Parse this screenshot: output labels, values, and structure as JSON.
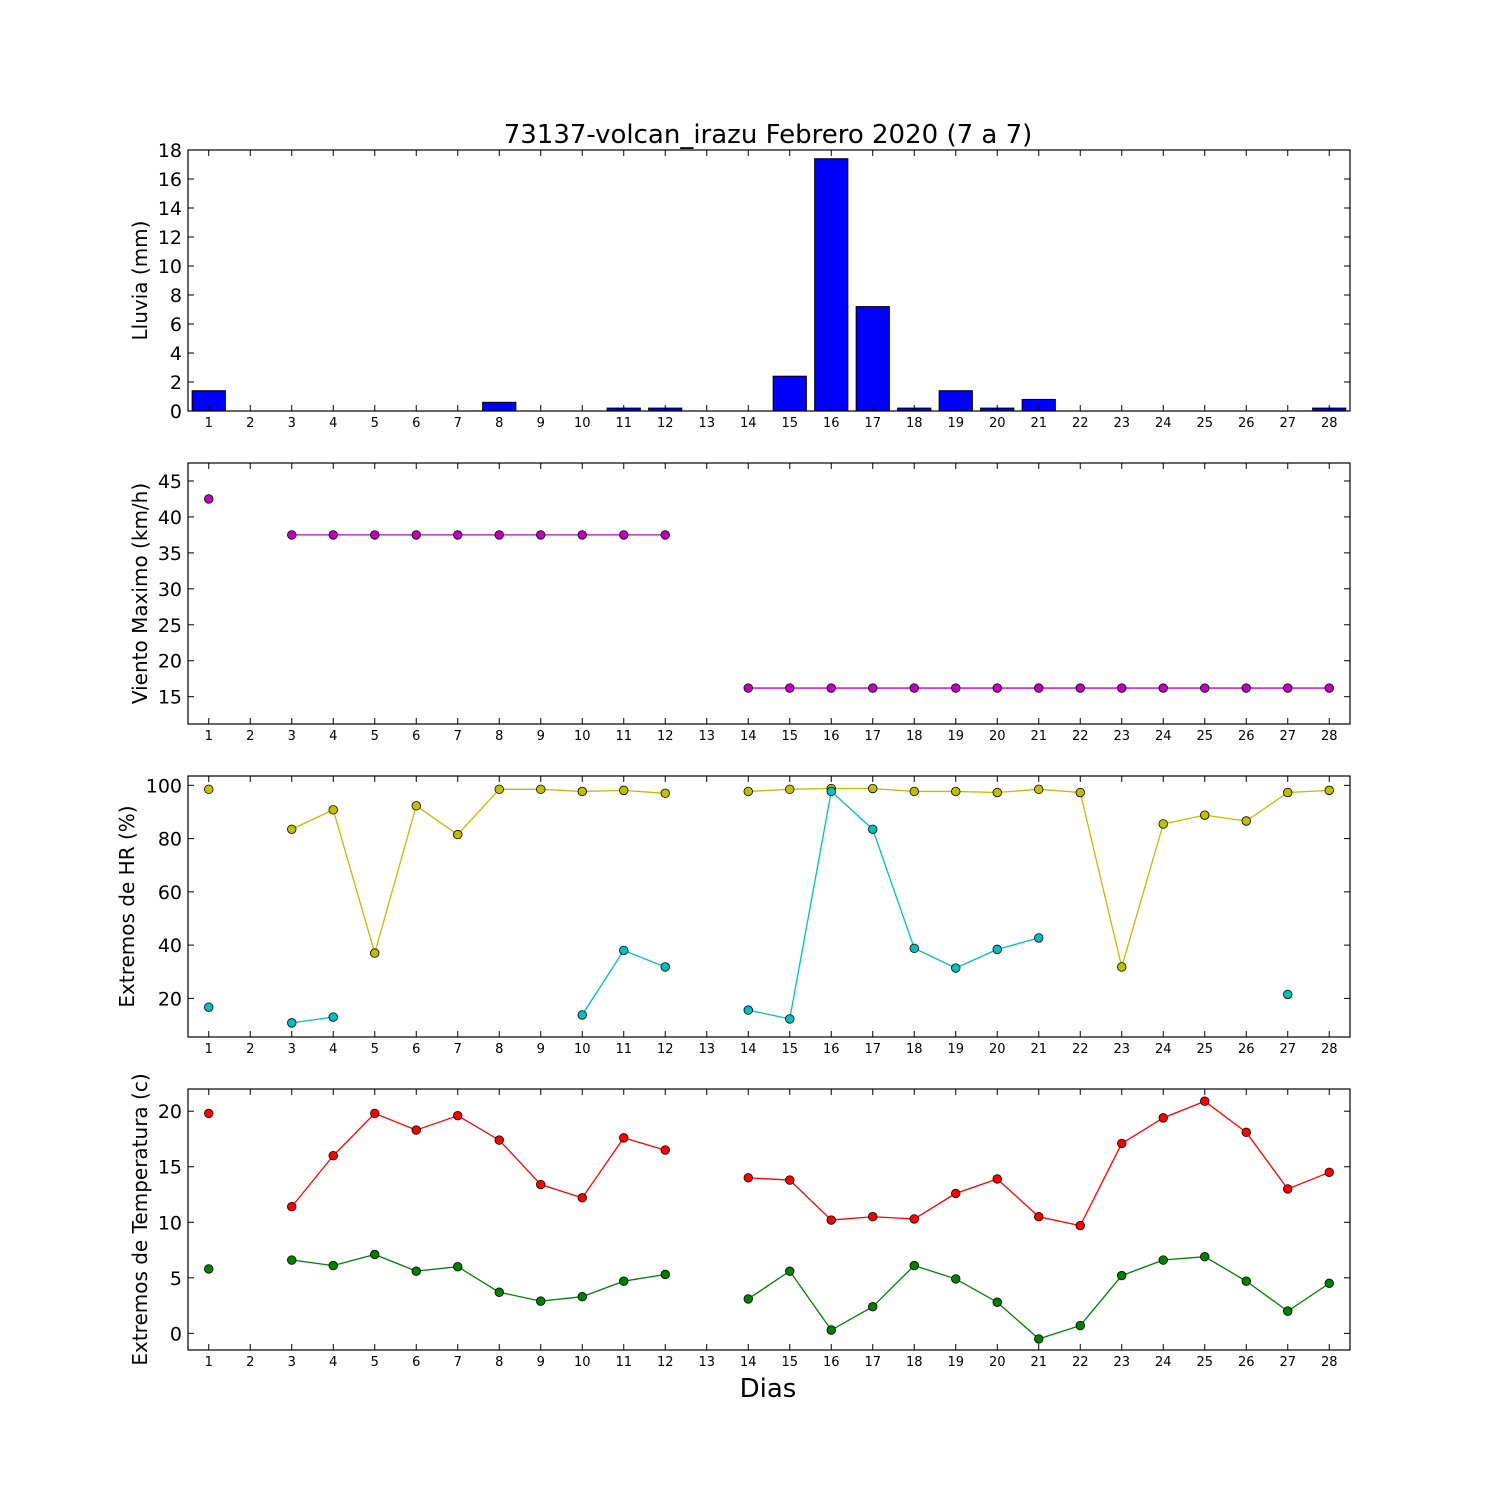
{
  "title": "73137-volcan_irazu Febrero 2020  (7 a 7)",
  "xlabel": "Dias",
  "chart_data": [
    {
      "type": "bar",
      "ylabel": "Lluvia (mm)",
      "ylim": [
        0,
        18
      ],
      "yticks": [
        0,
        2,
        4,
        6,
        8,
        10,
        12,
        14,
        16,
        18
      ],
      "xlim": [
        0.5,
        28.5
      ],
      "x": [
        1,
        2,
        3,
        4,
        5,
        6,
        7,
        8,
        9,
        10,
        11,
        12,
        13,
        14,
        15,
        16,
        17,
        18,
        19,
        20,
        21,
        22,
        23,
        24,
        25,
        26,
        27,
        28
      ],
      "values": [
        1.4,
        0,
        0,
        0,
        0,
        0,
        0,
        0.6,
        0,
        0,
        0.2,
        0.2,
        0,
        0,
        2.4,
        17.4,
        7.2,
        0.2,
        1.4,
        0.2,
        0.8,
        0,
        0,
        0,
        0,
        0,
        0,
        0.2
      ],
      "color": "#0000ff"
    },
    {
      "type": "line",
      "ylabel": "Viento Maximo (km/h)",
      "ylim": [
        11.2,
        47.5
      ],
      "yticks": [
        15,
        20,
        25,
        30,
        35,
        40,
        45
      ],
      "xlim": [
        0.5,
        28.5
      ],
      "x": [
        1,
        2,
        3,
        4,
        5,
        6,
        7,
        8,
        9,
        10,
        11,
        12,
        13,
        14,
        15,
        16,
        17,
        18,
        19,
        20,
        21,
        22,
        23,
        24,
        25,
        26,
        27,
        28
      ],
      "series": [
        {
          "color": "#bf00bf",
          "values": [
            42.5,
            null,
            37.5,
            37.5,
            37.5,
            37.5,
            37.5,
            37.5,
            37.5,
            37.5,
            37.5,
            37.5,
            null,
            16.2,
            16.2,
            16.2,
            16.2,
            16.2,
            16.2,
            16.2,
            16.2,
            16.2,
            16.2,
            16.2,
            16.2,
            16.2,
            16.2,
            16.2
          ]
        }
      ]
    },
    {
      "type": "line",
      "ylabel": "Extremos de HR (%)",
      "ylim": [
        5.5,
        103.5
      ],
      "yticks": [
        20,
        40,
        60,
        80,
        100
      ],
      "xlim": [
        0.5,
        28.5
      ],
      "x": [
        1,
        2,
        3,
        4,
        5,
        6,
        7,
        8,
        9,
        10,
        11,
        12,
        13,
        14,
        15,
        16,
        17,
        18,
        19,
        20,
        21,
        22,
        23,
        24,
        25,
        26,
        27,
        28
      ],
      "series": [
        {
          "color": "#bfbf00",
          "values": [
            98.5,
            null,
            83.5,
            90.8,
            37,
            92.3,
            81.5,
            98.5,
            98.5,
            97.7,
            98.1,
            97,
            null,
            97.7,
            98.5,
            98.8,
            98.8,
            97.7,
            97.7,
            97.3,
            98.5,
            97.3,
            31.8,
            85.5,
            88.8,
            86.6,
            97.3,
            98.1
          ]
        },
        {
          "color": "#00bfbf",
          "values": [
            16.7,
            null,
            10.8,
            13,
            null,
            null,
            null,
            null,
            null,
            13.8,
            38,
            31.8,
            null,
            15.6,
            12.3,
            97.7,
            83.5,
            38.8,
            31.4,
            38.4,
            42.7,
            null,
            null,
            null,
            null,
            null,
            21.5,
            null
          ]
        }
      ]
    },
    {
      "type": "line",
      "ylabel": "Extremos de Temperatura (c)",
      "ylim": [
        -1.5,
        22
      ],
      "yticks": [
        0,
        5,
        10,
        15,
        20
      ],
      "xlim": [
        0.5,
        28.5
      ],
      "x": [
        1,
        2,
        3,
        4,
        5,
        6,
        7,
        8,
        9,
        10,
        11,
        12,
        13,
        14,
        15,
        16,
        17,
        18,
        19,
        20,
        21,
        22,
        23,
        24,
        25,
        26,
        27,
        28
      ],
      "series": [
        {
          "color": "#ff0000",
          "values": [
            19.8,
            null,
            11.4,
            16,
            19.8,
            18.3,
            19.6,
            17.4,
            13.4,
            12.2,
            17.6,
            16.5,
            null,
            14,
            13.8,
            10.2,
            10.5,
            10.3,
            12.6,
            13.9,
            10.5,
            9.7,
            17.1,
            19.4,
            20.9,
            18.1,
            13,
            14.5
          ]
        },
        {
          "color": "#007f00",
          "values": [
            5.8,
            null,
            6.6,
            6.1,
            7.1,
            5.6,
            6,
            3.7,
            2.9,
            3.3,
            4.7,
            5.3,
            null,
            3.1,
            5.6,
            0.3,
            2.4,
            6.1,
            4.9,
            2.8,
            -0.5,
            0.7,
            5.2,
            6.6,
            6.9,
            4.7,
            2,
            4.5
          ]
        }
      ]
    }
  ]
}
